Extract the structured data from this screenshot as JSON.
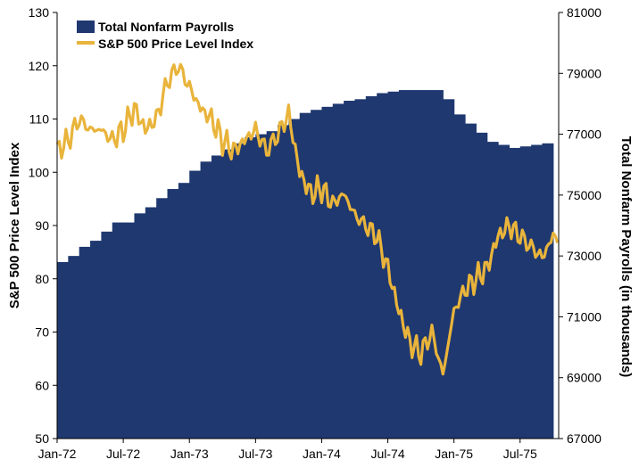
{
  "colors": {
    "payrolls": "#1f3870",
    "sp500": "#e9b43b",
    "axis": "#000000"
  },
  "chart_data": {
    "type": "area",
    "title": "",
    "xlabel": "",
    "ylabel_left": "S&P 500 Price Level Index",
    "ylabel_right": "Total Nonfarm Payrolls (in thousands)",
    "legend": {
      "placement": "top-left",
      "entries": [
        "Total Nonfarm Payrolls",
        "S&P 500 Price Level Index"
      ]
    },
    "x_ticks": [
      "Jan-72",
      "Jul-72",
      "Jan-73",
      "Jul-73",
      "Jan-74",
      "Jul-74",
      "Jan-75",
      "Jul-75"
    ],
    "y_left": {
      "min": 50,
      "max": 130,
      "ticks": [
        50,
        60,
        70,
        80,
        90,
        100,
        110,
        120,
        130
      ]
    },
    "y_right": {
      "min": 67000,
      "max": 81000,
      "ticks": [
        67000,
        69000,
        71000,
        73000,
        75000,
        77000,
        79000,
        81000
      ]
    },
    "months": [
      "1972-01",
      "1972-02",
      "1972-03",
      "1972-04",
      "1972-05",
      "1972-06",
      "1972-07",
      "1972-08",
      "1972-09",
      "1972-10",
      "1972-11",
      "1972-12",
      "1973-01",
      "1973-02",
      "1973-03",
      "1973-04",
      "1973-05",
      "1973-06",
      "1973-07",
      "1973-08",
      "1973-09",
      "1973-10",
      "1973-11",
      "1973-12",
      "1974-01",
      "1974-02",
      "1974-03",
      "1974-04",
      "1974-05",
      "1974-06",
      "1974-07",
      "1974-08",
      "1974-09",
      "1974-10",
      "1974-11",
      "1974-12",
      "1975-01",
      "1975-02",
      "1975-03",
      "1975-04",
      "1975-05",
      "1975-06",
      "1975-07",
      "1975-08",
      "1975-09"
    ],
    "series": [
      {
        "name": "Total Nonfarm Payrolls",
        "axis": "right",
        "kind": "step-area",
        "values": [
          72800,
          73000,
          73300,
          73500,
          73800,
          74100,
          74100,
          74400,
          74600,
          74900,
          75200,
          75400,
          75800,
          76100,
          76300,
          76500,
          76700,
          76900,
          77000,
          77100,
          77300,
          77500,
          77700,
          77800,
          77900,
          78000,
          78100,
          78150,
          78250,
          78350,
          78400,
          78450,
          78450,
          78450,
          78450,
          78150,
          77650,
          77350,
          77050,
          76750,
          76650,
          76550,
          76600,
          76650,
          76700
        ]
      },
      {
        "name": "S&P 500 Price Level Index",
        "axis": "left",
        "kind": "line",
        "x": [
          "1972-01",
          "1972-02",
          "1972-03",
          "1972-04",
          "1972-05",
          "1972-06",
          "1972-07",
          "1972-08",
          "1972-09",
          "1972-10",
          "1972-11",
          "1972-12",
          "1973-01",
          "1973-02",
          "1973-03",
          "1973-04",
          "1973-05",
          "1973-06",
          "1973-07",
          "1973-08",
          "1973-09",
          "1973-10",
          "1973-11",
          "1973-12",
          "1974-01",
          "1974-02",
          "1974-03",
          "1974-04",
          "1974-05",
          "1974-06",
          "1974-07",
          "1974-08",
          "1974-09",
          "1974-10",
          "1974-11",
          "1974-12",
          "1975-01",
          "1975-02",
          "1975-03",
          "1975-04",
          "1975-05",
          "1975-06",
          "1975-07",
          "1975-08",
          "1975-09",
          "1975-10"
        ],
        "values": [
          104,
          106,
          110,
          108,
          108,
          106,
          108,
          112,
          108,
          110,
          117,
          120,
          116,
          112,
          110,
          106,
          104,
          106,
          108,
          104,
          107,
          111,
          100,
          96,
          97,
          94,
          96,
          92,
          90,
          88,
          82,
          74,
          68,
          66,
          70,
          62,
          74,
          78,
          80,
          82,
          88,
          90,
          88,
          86,
          84,
          88
        ]
      }
    ]
  }
}
